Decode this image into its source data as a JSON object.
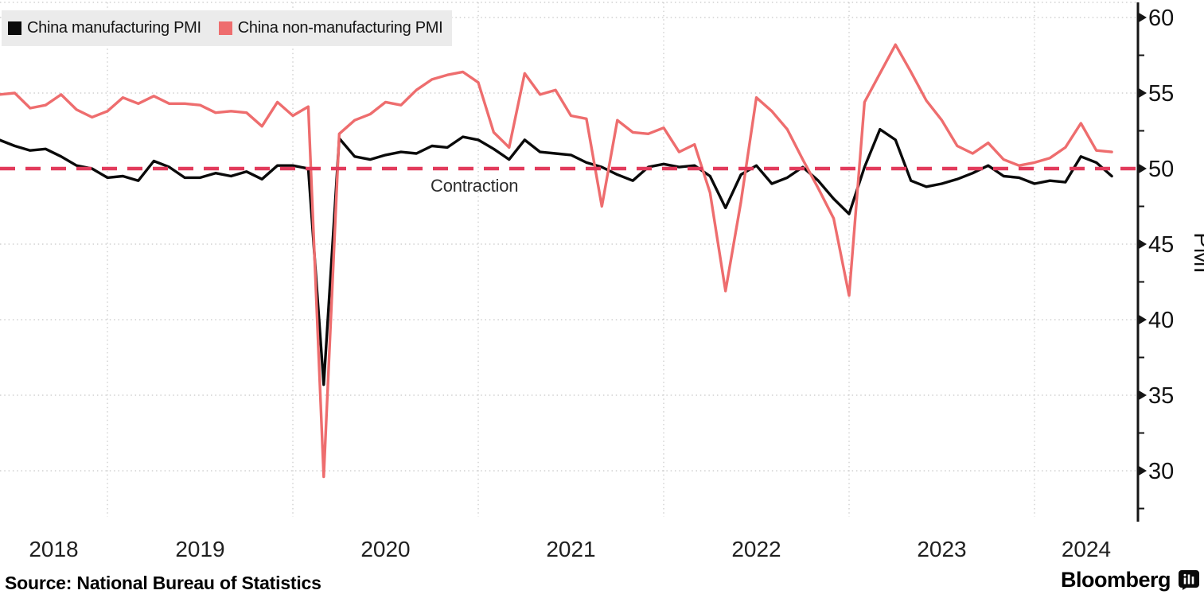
{
  "chart_data": {
    "type": "line",
    "x_monthly": [
      "2018-05",
      "2018-06",
      "2018-07",
      "2018-08",
      "2018-09",
      "2018-10",
      "2018-11",
      "2018-12",
      "2019-01",
      "2019-02",
      "2019-03",
      "2019-04",
      "2019-05",
      "2019-06",
      "2019-07",
      "2019-08",
      "2019-09",
      "2019-10",
      "2019-11",
      "2019-12",
      "2020-01",
      "2020-02",
      "2020-03",
      "2020-04",
      "2020-05",
      "2020-06",
      "2020-07",
      "2020-08",
      "2020-09",
      "2020-10",
      "2020-11",
      "2020-12",
      "2021-01",
      "2021-02",
      "2021-03",
      "2021-04",
      "2021-05",
      "2021-06",
      "2021-07",
      "2021-08",
      "2021-09",
      "2021-10",
      "2021-11",
      "2021-12",
      "2022-01",
      "2022-02",
      "2022-03",
      "2022-04",
      "2022-05",
      "2022-06",
      "2022-07",
      "2022-08",
      "2022-09",
      "2022-10",
      "2022-11",
      "2022-12",
      "2023-01",
      "2023-02",
      "2023-03",
      "2023-04",
      "2023-05",
      "2023-06",
      "2023-07",
      "2023-08",
      "2023-09",
      "2023-10",
      "2023-11",
      "2023-12",
      "2024-01",
      "2024-02",
      "2024-03",
      "2024-04",
      "2024-05"
    ],
    "series": [
      {
        "name": "China manufacturing PMI",
        "color": "#0a0a0a",
        "values": [
          51.9,
          51.5,
          51.2,
          51.3,
          50.8,
          50.2,
          50.0,
          49.4,
          49.5,
          49.2,
          50.5,
          50.1,
          49.4,
          49.4,
          49.7,
          49.5,
          49.8,
          49.3,
          50.2,
          50.2,
          50.0,
          35.7,
          52.0,
          50.8,
          50.6,
          50.9,
          51.1,
          51.0,
          51.5,
          51.4,
          52.1,
          51.9,
          51.3,
          50.6,
          51.9,
          51.1,
          51.0,
          50.9,
          50.4,
          50.1,
          49.6,
          49.2,
          50.1,
          50.3,
          50.1,
          50.2,
          49.5,
          47.4,
          49.6,
          50.2,
          49.0,
          49.4,
          50.1,
          49.2,
          48.0,
          47.0,
          50.1,
          52.6,
          51.9,
          49.2,
          48.8,
          49.0,
          49.3,
          49.7,
          50.2,
          49.5,
          49.4,
          49.0,
          49.2,
          49.1,
          50.8,
          50.4,
          49.5
        ]
      },
      {
        "name": "China non-manufacturing PMI",
        "color": "#ee6d6e",
        "values": [
          54.9,
          55.0,
          54.0,
          54.2,
          54.9,
          53.9,
          53.4,
          53.8,
          54.7,
          54.3,
          54.8,
          54.3,
          54.3,
          54.2,
          53.7,
          53.8,
          53.7,
          52.8,
          54.4,
          53.5,
          54.1,
          29.6,
          52.3,
          53.2,
          53.6,
          54.4,
          54.2,
          55.2,
          55.9,
          56.2,
          56.4,
          55.7,
          52.4,
          51.4,
          56.3,
          54.9,
          55.2,
          53.5,
          53.3,
          47.5,
          53.2,
          52.4,
          52.3,
          52.7,
          51.1,
          51.6,
          48.4,
          41.9,
          47.8,
          54.7,
          53.8,
          52.6,
          50.6,
          48.7,
          46.7,
          41.6,
          54.4,
          56.3,
          58.2,
          56.4,
          54.5,
          53.2,
          51.5,
          51.0,
          51.7,
          50.6,
          50.2,
          50.4,
          50.7,
          51.4,
          53.0,
          51.2,
          51.1
        ]
      }
    ],
    "baseline": {
      "value": 50,
      "label": "Contraction",
      "color": "#e23a5b",
      "style": "dashed"
    },
    "y_axis": {
      "label": "PMI",
      "side": "right",
      "ticks": [
        60,
        55,
        50,
        45,
        40,
        35,
        30
      ],
      "minor_tick_step": 2.5,
      "range": [
        26.5,
        61
      ]
    },
    "x_axis": {
      "year_labels": [
        "2018",
        "2019",
        "2020",
        "2021",
        "2022",
        "2023",
        "2024"
      ]
    },
    "grid": {
      "horizontal": true,
      "vertical": true,
      "style": "dotted",
      "color": "#c8c8c8"
    },
    "legend_position": "top-left",
    "legend_background": "#ebebeb"
  },
  "source": "Source: National Bureau of Statistics",
  "branding": {
    "name": "Bloomberg",
    "icon": "bloomberg-terminal-icon"
  }
}
